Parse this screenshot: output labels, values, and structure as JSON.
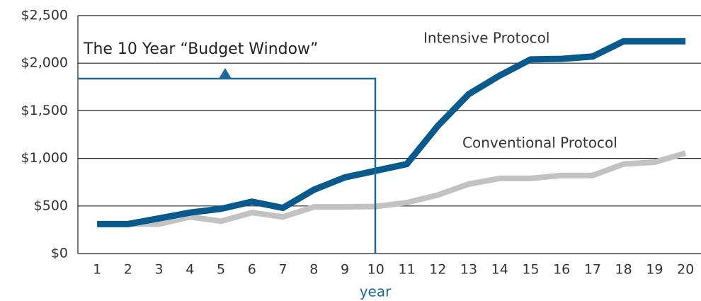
{
  "chart_data": {
    "type": "line",
    "title": "The 10 Year “Budget Window”",
    "x_label": "year",
    "x": [
      1,
      2,
      3,
      4,
      5,
      6,
      7,
      8,
      9,
      10,
      11,
      12,
      13,
      14,
      15,
      16,
      17,
      18,
      19,
      20
    ],
    "xlim": [
      0.38,
      20.5
    ],
    "xticks": [
      1,
      2,
      3,
      4,
      5,
      6,
      7,
      8,
      9,
      10,
      11,
      12,
      13,
      14,
      15,
      16,
      17,
      18,
      19,
      20
    ],
    "ylim": [
      0,
      2500
    ],
    "yticks": [
      {
        "value": 0,
        "label": "$0"
      },
      {
        "value": 500,
        "label": "$500"
      },
      {
        "value": 1000,
        "label": "$1,000"
      },
      {
        "value": 1500,
        "label": "$1,500"
      },
      {
        "value": 2000,
        "label": "$2,000"
      },
      {
        "value": 2500,
        "label": "$2,500"
      }
    ],
    "grid": true,
    "series": [
      {
        "name": "Intensive Protocol",
        "color": "#075a8b",
        "values": [
          310,
          310,
          370,
          430,
          470,
          545,
          480,
          670,
          800,
          870,
          940,
          1340,
          1675,
          1870,
          2040,
          2045,
          2070,
          2230,
          2230,
          2230
        ]
      },
      {
        "name": "Conventional Protocol",
        "color": "#c2c2c2",
        "values": [
          310,
          310,
          310,
          385,
          340,
          430,
          385,
          490,
          490,
          495,
          535,
          615,
          730,
          790,
          790,
          820,
          820,
          940,
          960,
          1055
        ]
      }
    ]
  }
}
